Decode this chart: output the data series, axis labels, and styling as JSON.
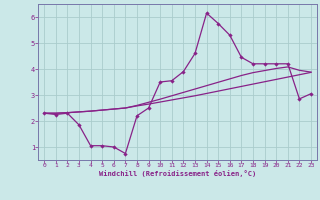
{
  "xlabel": "Windchill (Refroidissement éolien,°C)",
  "bg_color": "#cbe8e8",
  "grid_color": "#aacccc",
  "line_color": "#882288",
  "spine_color": "#7777aa",
  "xlim": [
    -0.5,
    23.5
  ],
  "ylim": [
    0.5,
    6.5
  ],
  "xticks": [
    0,
    1,
    2,
    3,
    4,
    5,
    6,
    7,
    8,
    9,
    10,
    11,
    12,
    13,
    14,
    15,
    16,
    17,
    18,
    19,
    20,
    21,
    22,
    23
  ],
  "yticks": [
    1,
    2,
    3,
    4,
    5,
    6
  ],
  "line1_x": [
    0,
    1,
    2,
    3,
    4,
    5,
    6,
    7,
    8,
    9,
    10,
    11,
    12,
    13,
    14,
    15,
    16,
    17,
    18,
    19,
    20,
    21,
    22,
    23
  ],
  "line1_y": [
    2.3,
    2.25,
    2.3,
    1.85,
    1.05,
    1.05,
    1.0,
    0.75,
    2.2,
    2.5,
    3.5,
    3.55,
    3.9,
    4.6,
    6.15,
    5.75,
    5.3,
    4.45,
    4.2,
    4.2,
    4.2,
    4.2,
    2.85,
    3.05
  ],
  "line2_x": [
    0,
    1,
    2,
    3,
    4,
    5,
    6,
    7,
    8,
    9,
    10,
    11,
    12,
    13,
    14,
    15,
    16,
    17,
    18,
    19,
    20,
    21,
    22,
    23
  ],
  "line2_y": [
    2.3,
    2.3,
    2.32,
    2.35,
    2.38,
    2.42,
    2.46,
    2.5,
    2.58,
    2.65,
    2.73,
    2.81,
    2.89,
    2.97,
    3.06,
    3.15,
    3.24,
    3.33,
    3.42,
    3.51,
    3.6,
    3.69,
    3.78,
    3.87
  ],
  "line3_x": [
    0,
    1,
    2,
    3,
    4,
    5,
    6,
    7,
    8,
    9,
    10,
    11,
    12,
    13,
    14,
    15,
    16,
    17,
    18,
    19,
    20,
    21,
    22,
    23
  ],
  "line3_y": [
    2.3,
    2.3,
    2.32,
    2.35,
    2.38,
    2.42,
    2.46,
    2.5,
    2.6,
    2.72,
    2.84,
    2.97,
    3.1,
    3.23,
    3.36,
    3.49,
    3.62,
    3.75,
    3.86,
    3.94,
    4.02,
    4.08,
    3.95,
    3.88
  ]
}
